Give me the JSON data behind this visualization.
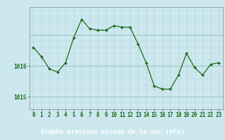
{
  "hours": [
    0,
    1,
    2,
    3,
    4,
    5,
    6,
    7,
    8,
    9,
    10,
    11,
    12,
    13,
    14,
    15,
    16,
    17,
    18,
    19,
    20,
    21,
    22,
    23
  ],
  "pressure": [
    1016.6,
    1016.3,
    1015.9,
    1015.8,
    1016.1,
    1016.9,
    1017.5,
    1017.2,
    1017.15,
    1017.15,
    1017.3,
    1017.25,
    1017.25,
    1016.7,
    1016.1,
    1015.35,
    1015.25,
    1015.25,
    1015.7,
    1016.4,
    1015.95,
    1015.7,
    1016.05,
    1016.1
  ],
  "line_color": "#1a6b1a",
  "marker": "D",
  "marker_size": 2.0,
  "bg_color": "#cce8ee",
  "grid_color": "#b0d0d8",
  "grid_color_strong": "#90b8c0",
  "xlabel": "Graphe pression niveau de la mer (hPa)",
  "xlabel_color": "#1a6b1a",
  "xlabel_fontsize": 6.5,
  "ylabel_ticks": [
    1015,
    1016
  ],
  "ylim": [
    1014.6,
    1017.9
  ],
  "xlim": [
    -0.5,
    23.5
  ],
  "tick_color": "#1a6b1a",
  "tick_fontsize": 5.5,
  "spine_color": "#888888",
  "fig_bg": "#cce8ee",
  "bottom_bar_color": "#2d6e2d",
  "bottom_bar_text_color": "#ffffff"
}
